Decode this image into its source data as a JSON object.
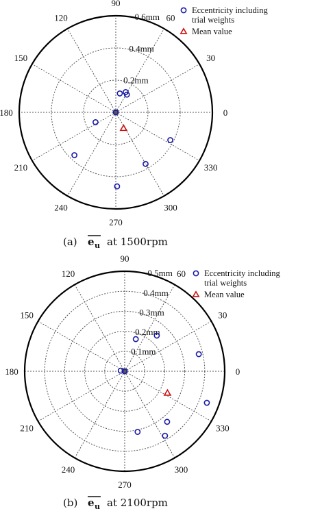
{
  "chart_data": [
    {
      "type": "scatter",
      "projection": "polar",
      "caption": {
        "prefix": "(a)",
        "symbol": "e",
        "subscript": "u",
        "suffix": "at 1500rpm"
      },
      "angle_ticks": [
        "0",
        "30",
        "60",
        "90",
        "120",
        "150",
        "180",
        "210",
        "240",
        "270",
        "300",
        "330"
      ],
      "rlim": [
        0,
        0.6
      ],
      "radial_ticks": [
        {
          "r": 0.2,
          "label": "0.2mm"
        },
        {
          "r": 0.4,
          "label": "0.4mm"
        },
        {
          "r": 0.6,
          "label": "0.6mm"
        }
      ],
      "grid": true,
      "legend_position": "top-right",
      "series": [
        {
          "name": "Eccentricity including trial weights",
          "marker": "circle",
          "color": "#1a1aa8",
          "points": [
            {
              "theta": 78,
              "r": 0.12
            },
            {
              "theta": 64,
              "r": 0.14
            },
            {
              "theta": 58,
              "r": 0.13
            },
            {
              "theta": 206,
              "r": 0.14
            },
            {
              "theta": 226,
              "r": 0.37
            },
            {
              "theta": 271,
              "r": 0.46
            },
            {
              "theta": 300,
              "r": 0.37
            },
            {
              "theta": 333,
              "r": 0.38
            },
            {
              "theta": 0,
              "r": 0.0
            }
          ]
        },
        {
          "name": "Mean value",
          "marker": "triangle",
          "color": "#cc1111",
          "points": [
            {
              "theta": 296,
              "r": 0.11
            }
          ]
        }
      ]
    },
    {
      "type": "scatter",
      "projection": "polar",
      "caption": {
        "prefix": "(b)",
        "symbol": "e",
        "subscript": "u",
        "suffix": "at 2100rpm"
      },
      "angle_ticks": [
        "0",
        "30",
        "60",
        "90",
        "120",
        "150",
        "180",
        "210",
        "240",
        "270",
        "300",
        "330"
      ],
      "rlim": [
        0,
        0.5
      ],
      "radial_ticks": [
        {
          "r": 0.1,
          "label": "0.1mm"
        },
        {
          "r": 0.2,
          "label": "0.2mm"
        },
        {
          "r": 0.3,
          "label": "0.3mm"
        },
        {
          "r": 0.4,
          "label": "0.4mm"
        },
        {
          "r": 0.5,
          "label": "0.5mm"
        }
      ],
      "grid": true,
      "legend_position": "top-right",
      "series": [
        {
          "name": "Eccentricity including trial weights",
          "marker": "circle",
          "color": "#1a1aa8",
          "points": [
            {
              "theta": 171,
              "r": 0.02
            },
            {
              "theta": 71,
              "r": 0.17
            },
            {
              "theta": 48,
              "r": 0.24
            },
            {
              "theta": 13,
              "r": 0.38
            },
            {
              "theta": 339,
              "r": 0.44
            },
            {
              "theta": 310,
              "r": 0.33
            },
            {
              "theta": 302,
              "r": 0.38
            },
            {
              "theta": 282,
              "r": 0.31
            },
            {
              "theta": 0,
              "r": 0.0
            }
          ]
        },
        {
          "name": "Mean value",
          "marker": "triangle",
          "color": "#cc1111",
          "points": [
            {
              "theta": 333,
              "r": 0.24
            }
          ]
        }
      ]
    }
  ]
}
